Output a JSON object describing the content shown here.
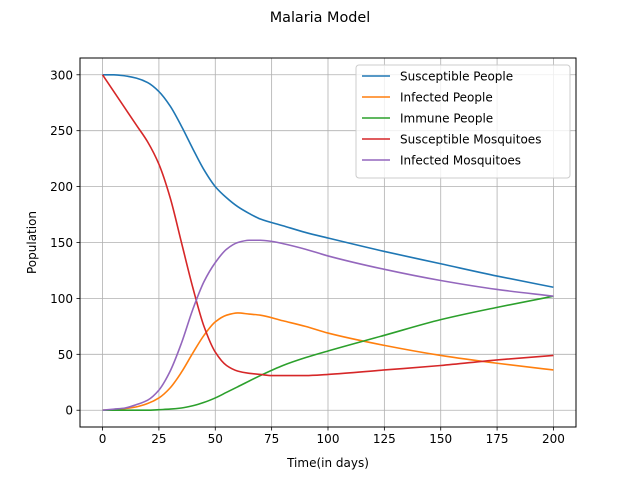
{
  "chart_data": {
    "type": "line",
    "title": "Malaria Model",
    "xlabel": "Time(in days)",
    "ylabel": "Population",
    "xlim": [
      -10,
      210
    ],
    "ylim": [
      -15,
      315
    ],
    "xticks": [
      0,
      25,
      50,
      75,
      100,
      125,
      150,
      175,
      200
    ],
    "yticks": [
      0,
      50,
      100,
      150,
      200,
      250,
      300
    ],
    "grid": true,
    "legend_position": "top-right",
    "series": [
      {
        "name": "Susceptible People",
        "color": "#1f77b4",
        "x": [
          0,
          5,
          10,
          15,
          20,
          25,
          30,
          35,
          40,
          45,
          50,
          55,
          60,
          65,
          70,
          80,
          90,
          100,
          125,
          150,
          175,
          200
        ],
        "y": [
          300,
          300,
          299,
          297,
          293,
          285,
          272,
          254,
          234,
          215,
          200,
          190,
          182,
          176,
          171,
          165,
          159,
          154,
          142,
          131,
          120,
          110
        ]
      },
      {
        "name": "Infected People",
        "color": "#ff7f0e",
        "x": [
          0,
          5,
          10,
          15,
          20,
          25,
          30,
          35,
          40,
          45,
          50,
          55,
          60,
          65,
          70,
          80,
          90,
          100,
          125,
          150,
          175,
          200
        ],
        "y": [
          0,
          0.5,
          1.5,
          3,
          6,
          11,
          20,
          34,
          51,
          67,
          79,
          85,
          87,
          86,
          85,
          80,
          75,
          69,
          58,
          49,
          42,
          36
        ]
      },
      {
        "name": "Immune People",
        "color": "#2ca02c",
        "x": [
          0,
          10,
          20,
          25,
          30,
          35,
          40,
          45,
          50,
          55,
          60,
          70,
          80,
          90,
          100,
          125,
          150,
          175,
          200
        ],
        "y": [
          0,
          0,
          0,
          0.5,
          1,
          2,
          4,
          7,
          11,
          16,
          21,
          31,
          40,
          47,
          53,
          67,
          81,
          92,
          102
        ]
      },
      {
        "name": "Susceptible Mosquitoes",
        "color": "#d62728",
        "x": [
          0,
          5,
          10,
          15,
          20,
          25,
          30,
          35,
          40,
          45,
          50,
          55,
          60,
          65,
          70,
          75,
          80,
          85,
          90,
          100,
          125,
          150,
          175,
          200
        ],
        "y": [
          300,
          285,
          270,
          255,
          240,
          220,
          190,
          150,
          110,
          75,
          52,
          40,
          35,
          33,
          32,
          31,
          31,
          31,
          31,
          32,
          36,
          40,
          45,
          49
        ]
      },
      {
        "name": "Infected Mosquitoes",
        "color": "#9467bd",
        "x": [
          0,
          5,
          10,
          15,
          20,
          25,
          30,
          35,
          40,
          45,
          50,
          55,
          60,
          65,
          70,
          75,
          80,
          90,
          100,
          125,
          150,
          175,
          200
        ],
        "y": [
          0,
          1,
          2,
          5,
          9,
          18,
          35,
          60,
          90,
          115,
          132,
          144,
          150,
          152,
          152,
          151,
          149,
          144,
          138,
          126,
          116,
          108,
          102
        ]
      }
    ]
  }
}
